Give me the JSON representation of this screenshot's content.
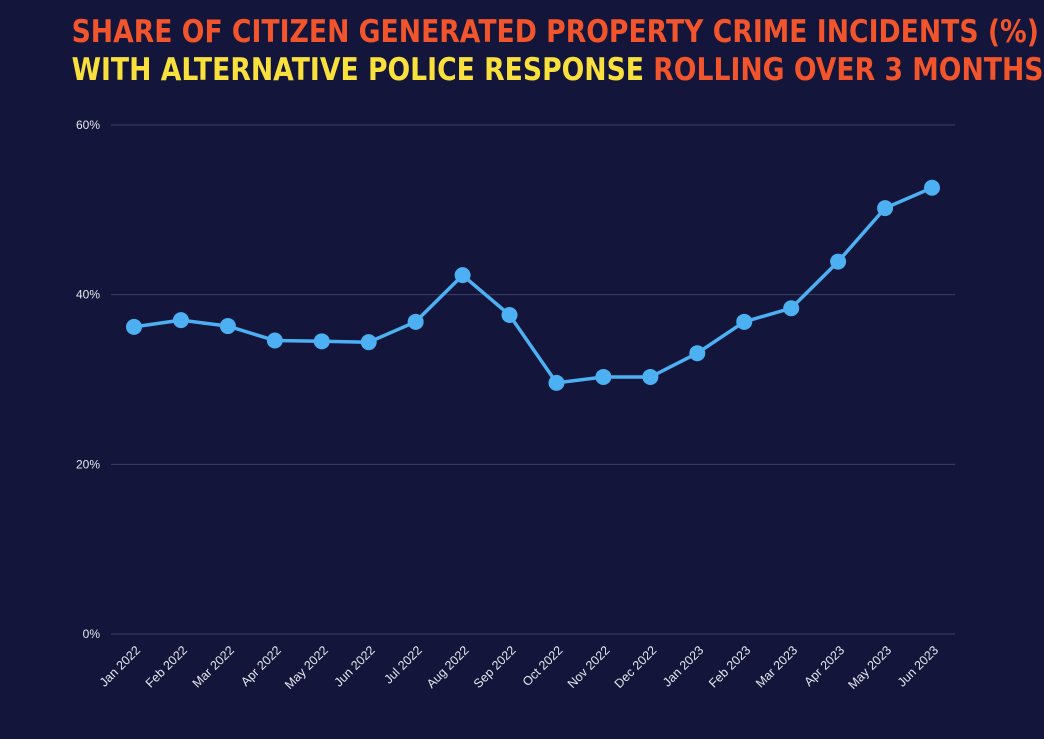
{
  "title": {
    "line1": [
      {
        "text": "SHARE OF CITIZEN GENERATED PROPERTY CRIME INCIDENTS (%)",
        "color": "#f2552c"
      }
    ],
    "line2": [
      {
        "text": "WITH ALTERNATIVE POLICE RESPONSE ",
        "color": "#f9e03c"
      },
      {
        "text": "ROLLING OVER 3 MONTHS",
        "color": "#f2552c"
      }
    ]
  },
  "chart_data": {
    "type": "line",
    "categories": [
      "Jan 2022",
      "Feb 2022",
      "Mar 2022",
      "Apr 2022",
      "May 2022",
      "Jun 2022",
      "Jul 2022",
      "Aug 2022",
      "Sep 2022",
      "Oct 2022",
      "Nov 2022",
      "Dec 2022",
      "Jan 2023",
      "Feb 2023",
      "Mar 2023",
      "Apr 2023",
      "May 2023",
      "Jun 2023"
    ],
    "series": [
      {
        "values": [
          36.2,
          37.0,
          36.3,
          34.6,
          34.5,
          34.4,
          36.8,
          42.3,
          37.6,
          29.6,
          30.3,
          30.3,
          33.1,
          36.8,
          38.4,
          43.9,
          50.2,
          52.6
        ]
      }
    ],
    "ylim": [
      0,
      60
    ],
    "yticks": [
      0,
      20,
      40,
      60
    ],
    "ytick_labels": [
      "0%",
      "20%",
      "40%",
      "60%"
    ],
    "grid": true,
    "line_color": "#4db0f2",
    "grid_color": "#3c3f66"
  }
}
